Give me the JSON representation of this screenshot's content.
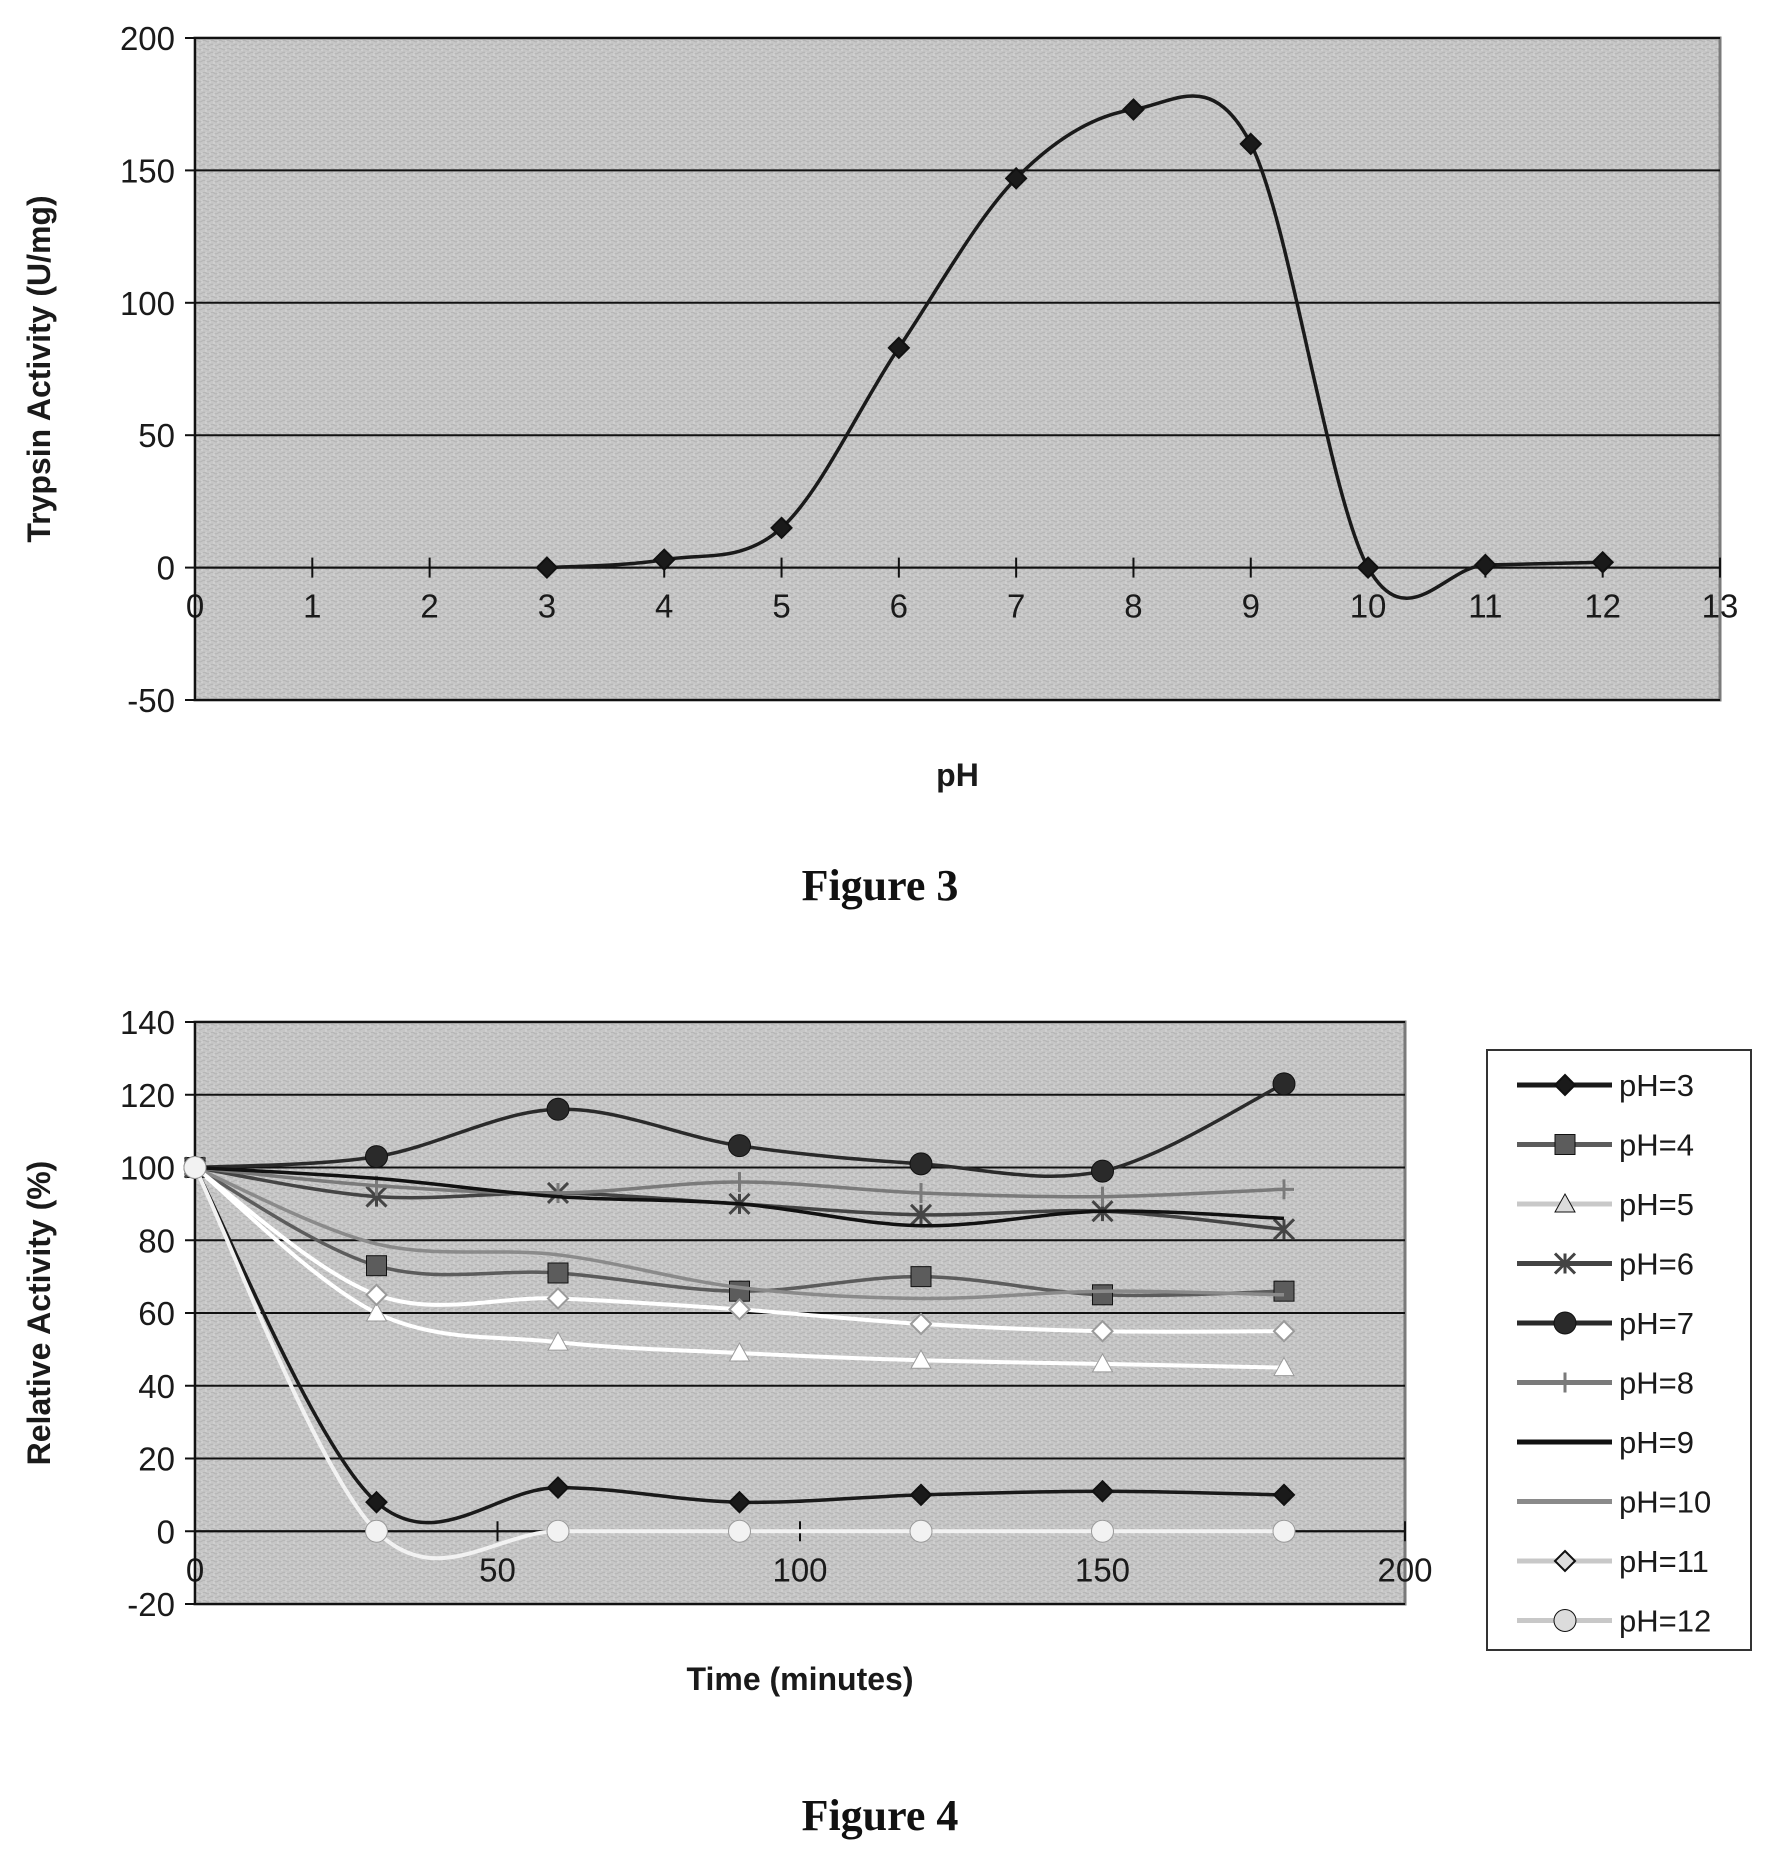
{
  "figures": [
    {
      "caption": "Figure 3",
      "chart_data": {
        "type": "line",
        "title": "",
        "xlabel": "pH",
        "ylabel": "Trypsin Activity (U/mg)",
        "xlim": [
          0,
          13
        ],
        "ylim": [
          -50,
          200
        ],
        "xticks": [
          0,
          1,
          2,
          3,
          4,
          5,
          6,
          7,
          8,
          9,
          10,
          11,
          12,
          13
        ],
        "yticks": [
          -50,
          0,
          50,
          100,
          150,
          200
        ],
        "grid": "horizontal",
        "legend": "none",
        "background": "#c8c8c8",
        "series": [
          {
            "marker": "diamond",
            "color": "#1a1a1a",
            "x": [
              3,
              4,
              5,
              6,
              7,
              8,
              9,
              10,
              11,
              12
            ],
            "y": [
              0,
              3,
              15,
              83,
              147,
              173,
              160,
              0,
              1,
              2
            ]
          }
        ]
      }
    },
    {
      "caption": "Figure 4",
      "chart_data": {
        "type": "line",
        "title": "",
        "xlabel": "Time (minutes)",
        "ylabel": "Relative Activity (%)",
        "xlim": [
          0,
          200
        ],
        "ylim": [
          -20,
          140
        ],
        "xticks": [
          0,
          50,
          100,
          150,
          200
        ],
        "yticks": [
          -20,
          0,
          20,
          40,
          60,
          80,
          100,
          120,
          140
        ],
        "grid": "horizontal",
        "legend": "right",
        "background": "#c8c8c8",
        "x": [
          0,
          30,
          60,
          90,
          120,
          150,
          180
        ],
        "series": [
          {
            "name": "pH=3",
            "marker": "diamond",
            "color": "#1a1a1a",
            "values": [
              100,
              8,
              12,
              8,
              10,
              11,
              10
            ]
          },
          {
            "name": "pH=4",
            "marker": "square",
            "color": "#5c5c5c",
            "values": [
              100,
              73,
              71,
              66,
              70,
              65,
              66
            ]
          },
          {
            "name": "pH=5",
            "marker": "triangle",
            "color": "#ffffff",
            "values": [
              100,
              60,
              52,
              49,
              47,
              46,
              45
            ]
          },
          {
            "name": "pH=6",
            "marker": "asterisk",
            "color": "#444444",
            "values": [
              100,
              92,
              93,
              90,
              87,
              88,
              83
            ]
          },
          {
            "name": "pH=7",
            "marker": "circle",
            "color": "#2a2a2a",
            "values": [
              100,
              103,
              116,
              106,
              101,
              99,
              123
            ]
          },
          {
            "name": "pH=8",
            "marker": "plus",
            "color": "#7a7a7a",
            "values": [
              100,
              95,
              93,
              96,
              93,
              92,
              94
            ]
          },
          {
            "name": "pH=9",
            "marker": "none",
            "color": "#111111",
            "values": [
              100,
              97,
              92,
              90,
              84,
              88,
              86
            ]
          },
          {
            "name": "pH=10",
            "marker": "none",
            "color": "#8a8a8a",
            "values": [
              100,
              79,
              76,
              67,
              64,
              66,
              65
            ]
          },
          {
            "name": "pH=11",
            "marker": "diamond",
            "color": "#ffffff",
            "values": [
              100,
              65,
              64,
              61,
              57,
              55,
              55
            ]
          },
          {
            "name": "pH=12",
            "marker": "circle",
            "color": "#f2f2f2",
            "values": [
              100,
              0,
              0,
              0,
              0,
              0,
              0
            ]
          }
        ]
      }
    }
  ]
}
